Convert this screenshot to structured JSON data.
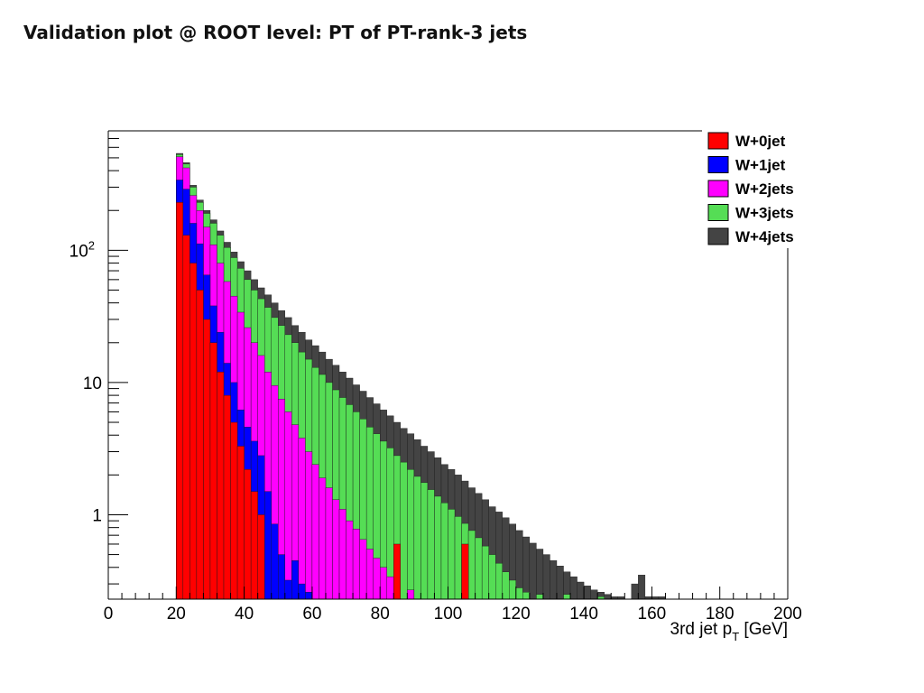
{
  "slide": {
    "title": "Validation plot @ ROOT level: PT of PT-rank-3 jets"
  },
  "chart_data": {
    "type": "bar",
    "stacked": true,
    "log_y": true,
    "x_bin_width": 2,
    "xlabel_main": "3rd jet p",
    "xlabel_sub": "T",
    "xlabel_tail": " [GeV]",
    "xlim": [
      0,
      200
    ],
    "ylim": [
      0.23,
      800
    ],
    "x_ticks": [
      "0",
      "20",
      "40",
      "60",
      "80",
      "100",
      "120",
      "140",
      "160",
      "180",
      "200"
    ],
    "y_ticks": [
      {
        "value": 1,
        "base": "1",
        "exp": ""
      },
      {
        "value": 10,
        "base": "10",
        "exp": ""
      },
      {
        "value": 100,
        "base": "10",
        "exp": "2"
      }
    ],
    "legend_position": "top-right",
    "series": [
      {
        "name": "W+0jet",
        "color": "#ff0000",
        "x": [
          20,
          22,
          24,
          26,
          28,
          30,
          32,
          34,
          36,
          38,
          40,
          42,
          44,
          84,
          104
        ],
        "y": [
          230,
          130,
          80,
          50,
          30,
          20,
          12,
          8,
          5,
          3.3,
          2.2,
          1.5,
          1,
          0.6,
          0.6
        ]
      },
      {
        "name": "W+1jet",
        "color": "#0000ff",
        "x": [
          20,
          22,
          24,
          26,
          28,
          30,
          32,
          34,
          36,
          38,
          40,
          42,
          44,
          46,
          48,
          50,
          52,
          54,
          56,
          58
        ],
        "y": [
          340,
          290,
          160,
          112,
          65,
          38,
          24,
          14,
          10,
          6.2,
          4.6,
          3.6,
          2.8,
          1.5,
          0.85,
          0.5,
          0.32,
          0.45,
          0.3,
          0.26
        ]
      },
      {
        "name": "W+2jets",
        "color": "#ff00ff",
        "x": [
          20,
          22,
          24,
          26,
          28,
          30,
          32,
          34,
          36,
          38,
          40,
          42,
          44,
          46,
          48,
          50,
          52,
          54,
          56,
          58,
          60,
          62,
          64,
          66,
          68,
          70,
          72,
          74,
          76,
          78,
          80,
          82,
          84,
          88
        ],
        "y": [
          510,
          420,
          260,
          200,
          150,
          110,
          80,
          58,
          45,
          34,
          26,
          20,
          16,
          12,
          9.5,
          7.5,
          6,
          4.8,
          3.8,
          3,
          2.4,
          1.9,
          1.6,
          1.3,
          1.1,
          0.9,
          0.78,
          0.65,
          0.55,
          0.47,
          0.4,
          0.34,
          0.52,
          0.27
        ]
      },
      {
        "name": "W+3jets",
        "color": "#55dd55",
        "x": [
          20,
          22,
          24,
          26,
          28,
          30,
          32,
          34,
          36,
          38,
          40,
          42,
          44,
          46,
          48,
          50,
          52,
          54,
          56,
          58,
          60,
          62,
          64,
          66,
          68,
          70,
          72,
          74,
          76,
          78,
          80,
          82,
          84,
          86,
          88,
          90,
          92,
          94,
          96,
          98,
          100,
          102,
          104,
          106,
          108,
          110,
          112,
          114,
          116,
          118,
          120,
          122,
          126,
          134,
          144
        ],
        "y": [
          530,
          450,
          300,
          230,
          190,
          160,
          130,
          105,
          88,
          73,
          60,
          50,
          43,
          37,
          31,
          27,
          23,
          20,
          17,
          15,
          13,
          11.5,
          10,
          8.8,
          7.7,
          6.8,
          6,
          5.3,
          4.6,
          4.1,
          3.6,
          3.2,
          2.8,
          2.5,
          2.2,
          1.95,
          1.75,
          1.55,
          1.38,
          1.23,
          1.1,
          0.97,
          0.86,
          0.76,
          0.67,
          0.58,
          0.5,
          0.43,
          0.37,
          0.32,
          0.28,
          0.26,
          0.25,
          0.25,
          0.24
        ]
      },
      {
        "name": "W+4jets",
        "color": "#444444",
        "x": [
          20,
          22,
          24,
          26,
          28,
          30,
          32,
          34,
          36,
          38,
          40,
          42,
          44,
          46,
          48,
          50,
          52,
          54,
          56,
          58,
          60,
          62,
          64,
          66,
          68,
          70,
          72,
          74,
          76,
          78,
          80,
          82,
          84,
          86,
          88,
          90,
          92,
          94,
          96,
          98,
          100,
          102,
          104,
          106,
          108,
          110,
          112,
          114,
          116,
          118,
          120,
          122,
          124,
          126,
          128,
          130,
          132,
          134,
          136,
          138,
          140,
          142,
          144,
          146,
          148,
          150,
          154,
          156,
          158,
          160,
          162
        ],
        "y": [
          540,
          460,
          310,
          240,
          200,
          170,
          140,
          115,
          97,
          82,
          70,
          60,
          52,
          46,
          40,
          35,
          31,
          27,
          24,
          21,
          19,
          17,
          15,
          13.5,
          12,
          10.8,
          9.6,
          8.6,
          7.7,
          6.9,
          6.2,
          5.6,
          5,
          4.5,
          4.1,
          3.7,
          3.3,
          3,
          2.7,
          2.4,
          2.2,
          2,
          1.8,
          1.6,
          1.45,
          1.3,
          1.15,
          1.05,
          0.95,
          0.85,
          0.76,
          0.68,
          0.61,
          0.55,
          0.5,
          0.45,
          0.41,
          0.37,
          0.34,
          0.31,
          0.29,
          0.27,
          0.26,
          0.25,
          0.24,
          0.24,
          0.3,
          0.35,
          0.24,
          0.24,
          0.24
        ]
      }
    ]
  }
}
